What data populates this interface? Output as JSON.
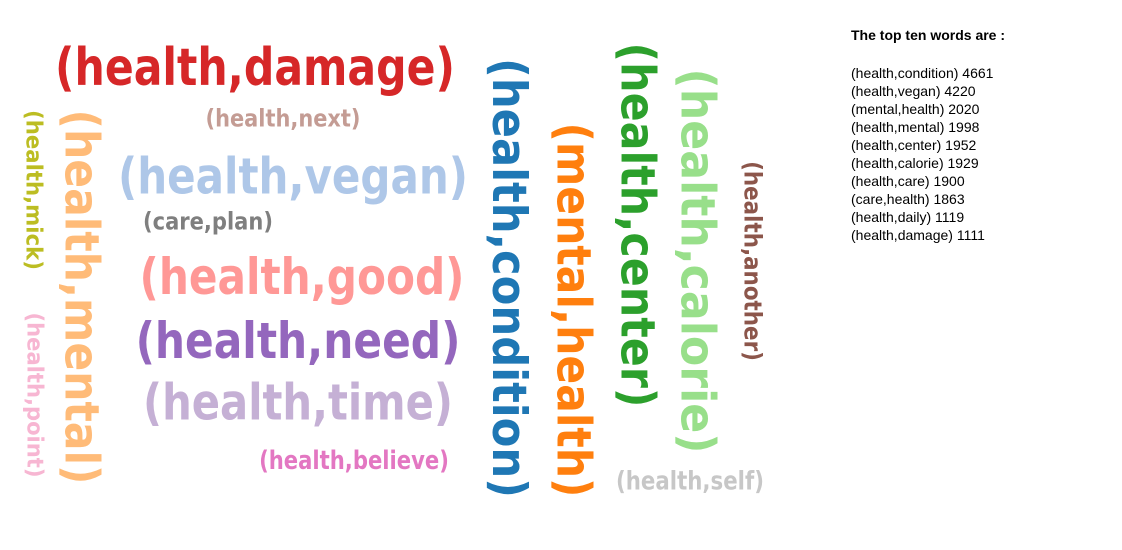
{
  "chart_data": {
    "type": "word_cloud",
    "words": [
      {
        "text": "(health,damage)",
        "color": "#d62728"
      },
      {
        "text": "(health,next)",
        "color": "#c49c94"
      },
      {
        "text": "(health,vegan)",
        "color": "#aec7e8"
      },
      {
        "text": "(care,plan)",
        "color": "#7f7f7f"
      },
      {
        "text": "(health,good)",
        "color": "#ff9896"
      },
      {
        "text": "(health,need)",
        "color": "#9467bd"
      },
      {
        "text": "(health,time)",
        "color": "#c5b0d5"
      },
      {
        "text": "(health,believe)",
        "color": "#e377c2"
      },
      {
        "text": "(health,mick)",
        "color": "#bcbd22"
      },
      {
        "text": "(health,mental)",
        "color": "#ffbb78"
      },
      {
        "text": "(health,point)",
        "color": "#f7b6d2"
      },
      {
        "text": "(health,condition)",
        "color": "#1f77b4"
      },
      {
        "text": "(mental,health)",
        "color": "#ff7f0e"
      },
      {
        "text": "(health,center)",
        "color": "#2ca02c"
      },
      {
        "text": "(health,calorie)",
        "color": "#98df8a"
      },
      {
        "text": "(health,another)",
        "color": "#8c564b"
      },
      {
        "text": "(health,self)",
        "color": "#c7c7c7"
      }
    ]
  },
  "panel": {
    "title": "The top ten words are :",
    "rows": [
      "(health,condition) 4661",
      "(health,vegan) 4220",
      "(mental,health) 2020",
      "(health,mental) 1998",
      "(health,center) 1952",
      "(health,calorie) 1929",
      "(health,care) 1900",
      "(care,health) 1863",
      "(health,daily) 1119",
      "(health,damage) 1111"
    ]
  }
}
